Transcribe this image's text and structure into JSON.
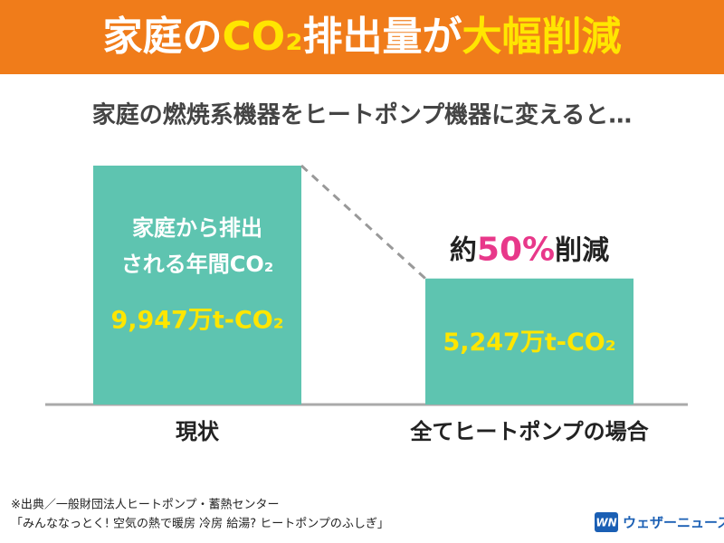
{
  "chart_data": {
    "type": "bar",
    "title_segments": [
      {
        "text": "家庭の",
        "highlight": false
      },
      {
        "text": "CO₂",
        "highlight": true
      },
      {
        "text": "排出量が",
        "highlight": false
      },
      {
        "text": "大幅削減",
        "highlight": true
      }
    ],
    "title_color": "#ffffff",
    "highlight_color": "#ffe600",
    "header_color": "#f07c1a",
    "subtitle": "家庭の燃焼系機器をヒートポンプ機器に変えると…",
    "categories": [
      "現状",
      "全てヒートポンプの場合"
    ],
    "values": [
      9947,
      5247
    ],
    "value_labels": [
      "9,947万t-CO₂",
      "5,247万t-CO₂"
    ],
    "color": "#5ec4b0",
    "ylim": [
      0,
      10000
    ],
    "bar_note": [
      "家庭から排出",
      "される年間CO₂"
    ],
    "annotation_segments": [
      {
        "text": "約",
        "highlight": false
      },
      {
        "text": "50%",
        "highlight": true
      },
      {
        "text": "削減",
        "highlight": false
      }
    ],
    "annotation_highlight_color": "#e8388a",
    "source": [
      "※出典／一般財団法人ヒートポンプ・蓄熱センター",
      "「みんななっとく! 空気の熱で暖房 冷房 給湯? ヒートポンプのふしぎ」"
    ],
    "logo": {
      "mark": "WN",
      "name": "ウェザーニュース"
    }
  }
}
